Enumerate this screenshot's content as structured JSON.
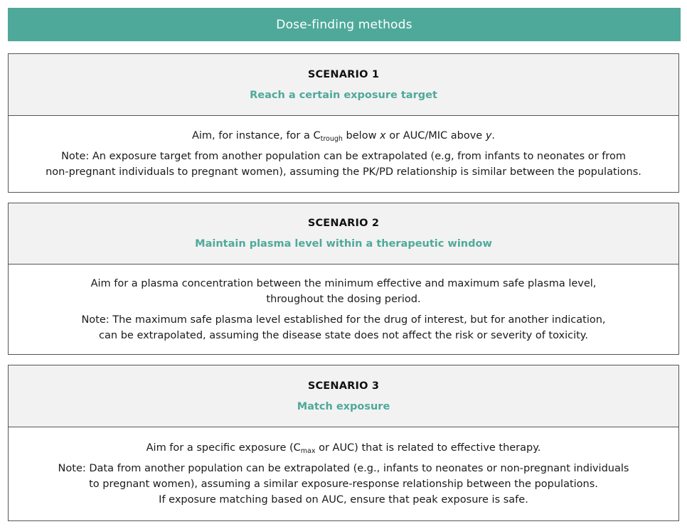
{
  "header": {
    "title": "Dose-finding methods"
  },
  "colors": {
    "teal": "#4fa99b",
    "panel_bg": "#f2f2f2",
    "border": "#555555"
  },
  "scenarios": [
    {
      "label": "SCENARIO 1",
      "subtitle": "Reach a certain exposure target",
      "aim": {
        "prefix": "Aim, for instance, for a C",
        "sub": "trough",
        "mid": " below ",
        "var1": "x",
        "mid2": " or AUC/MIC above ",
        "var2": "y",
        "end": "."
      },
      "note_lines": [
        "Note: An exposure target from another population can be extrapolated (e.g, from infants to neonates or from",
        "non-pregnant individuals to pregnant women), assuming the PK/PD relationship is similar between the populations."
      ]
    },
    {
      "label": "SCENARIO 2",
      "subtitle": "Maintain plasma level within a therapeutic window",
      "aim_lines": [
        "Aim for a plasma concentration between the minimum effective and maximum safe plasma level,",
        "throughout the dosing period."
      ],
      "note_lines": [
        "Note: The maximum safe plasma level established for the drug of interest, but for another indication,",
        "can be extrapolated, assuming the disease state does not affect the risk or severity of toxicity."
      ]
    },
    {
      "label": "SCENARIO 3",
      "subtitle": "Match exposure",
      "aim": {
        "prefix": "Aim for a specific exposure (C",
        "sub": "max",
        "end": " or AUC) that is related to effective therapy."
      },
      "note_lines": [
        "Note: Data from another population can be extrapolated (e.g., infants to neonates or non-pregnant individuals",
        "to pregnant women), assuming a similar exposure-response relationship between the populations.",
        "If exposure matching based on AUC, ensure that peak exposure is safe."
      ]
    }
  ]
}
